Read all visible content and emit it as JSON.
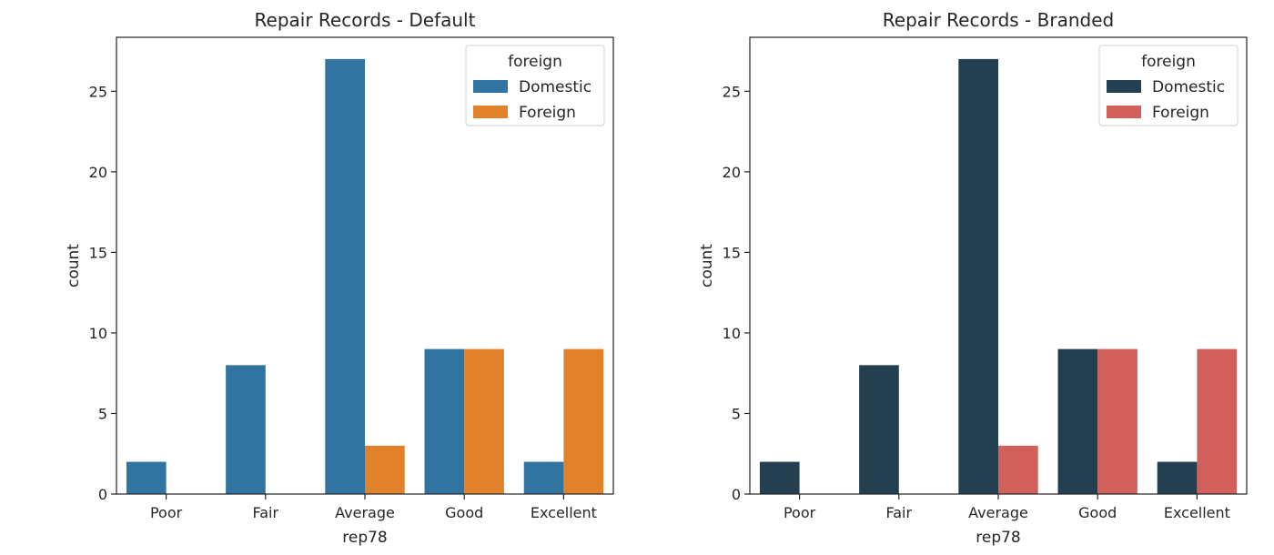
{
  "chart_data": [
    {
      "type": "bar",
      "title": "Repair Records - Default",
      "xlabel": "rep78",
      "ylabel": "count",
      "categories": [
        "Poor",
        "Fair",
        "Average",
        "Good",
        "Excellent"
      ],
      "ylim": [
        0,
        28.35
      ],
      "yticks": [
        0,
        5,
        10,
        15,
        20,
        25
      ],
      "legend": {
        "title": "foreign",
        "placement": "top-right"
      },
      "series": [
        {
          "name": "Domestic",
          "color": "#3274a1",
          "values": [
            2,
            8,
            27,
            9,
            2
          ]
        },
        {
          "name": "Foreign",
          "color": "#e1812c",
          "values": [
            0,
            0,
            3,
            9,
            9
          ]
        }
      ]
    },
    {
      "type": "bar",
      "title": "Repair Records - Branded",
      "xlabel": "rep78",
      "ylabel": "count",
      "categories": [
        "Poor",
        "Fair",
        "Average",
        "Good",
        "Excellent"
      ],
      "ylim": [
        0,
        28.35
      ],
      "yticks": [
        0,
        5,
        10,
        15,
        20,
        25
      ],
      "legend": {
        "title": "foreign",
        "placement": "top-right"
      },
      "series": [
        {
          "name": "Domestic",
          "color": "#233f50",
          "values": [
            2,
            8,
            27,
            9,
            2
          ]
        },
        {
          "name": "Foreign",
          "color": "#d2605a",
          "values": [
            0,
            0,
            3,
            9,
            9
          ]
        }
      ]
    }
  ]
}
